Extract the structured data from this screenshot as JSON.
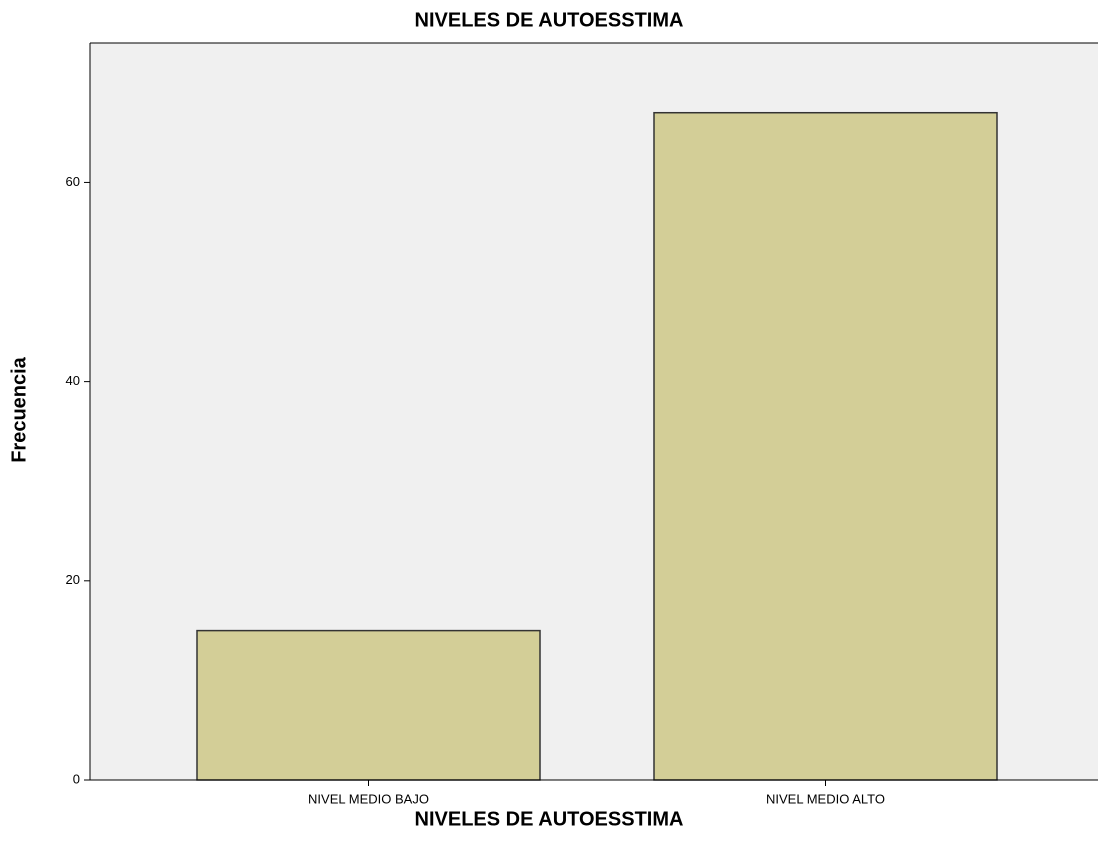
{
  "chart_data": {
    "type": "bar",
    "title": "NIVELES DE AUTOESSTIMA",
    "x_label": "NIVELES DE AUTOESSTIMA",
    "y_label": "Frecuencia",
    "categories": [
      "NIVEL MEDIO BAJO",
      "NIVEL MEDIO ALTO"
    ],
    "values": [
      15,
      67
    ],
    "color": "#d3ce97",
    "ylim": [
      0,
      74
    ],
    "yticks": [
      0,
      20,
      40,
      60
    ]
  }
}
